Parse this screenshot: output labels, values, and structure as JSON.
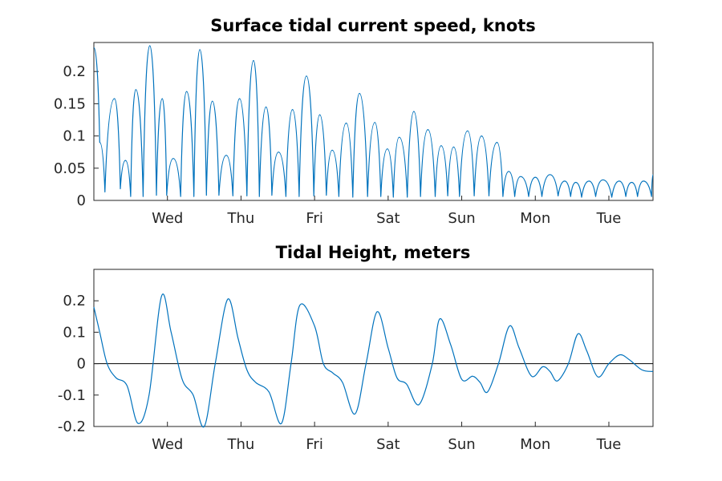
{
  "chart_data": [
    {
      "type": "line",
      "title": "Surface tidal current speed, knots",
      "xlabel": "",
      "ylabel": "",
      "x_range": [
        0,
        7.6
      ],
      "xticks": [
        {
          "label": "Wed",
          "x": 1
        },
        {
          "label": "Thu",
          "x": 2
        },
        {
          "label": "Fri",
          "x": 3
        },
        {
          "label": "Sat",
          "x": 4
        },
        {
          "label": "Sun",
          "x": 5
        },
        {
          "label": "Mon",
          "x": 6
        },
        {
          "label": "Tue",
          "x": 7
        }
      ],
      "yticks": [
        {
          "label": "0",
          "v": 0
        },
        {
          "label": "0.05",
          "v": 0.05
        },
        {
          "label": "0.1",
          "v": 0.1
        },
        {
          "label": "0.15",
          "v": 0.15
        },
        {
          "label": "0.2",
          "v": 0.2
        }
      ],
      "ylim": [
        0,
        0.245
      ],
      "grid": false,
      "color": "#0072BD",
      "series": [
        {
          "x": [
            0,
            0.08,
            0.15,
            0.28,
            0.36,
            0.43,
            0.5,
            0.57,
            0.67,
            0.76,
            0.85,
            0.93,
            0.99,
            1.08,
            1.18,
            1.26,
            1.36,
            1.44,
            1.53,
            1.61,
            1.7,
            1.8,
            1.89,
            1.98,
            2.08,
            2.17,
            2.25,
            2.34,
            2.42,
            2.51,
            2.61,
            2.7,
            2.79,
            2.89,
            2.99,
            3.07,
            3.16,
            3.24,
            3.33,
            3.43,
            3.52,
            3.61,
            3.72,
            3.82,
            3.9,
            3.99,
            4.07,
            4.15,
            4.26,
            4.35,
            4.44,
            4.54,
            4.64,
            4.72,
            4.81,
            4.89,
            4.97,
            5.08,
            5.17,
            5.27,
            5.37,
            5.48,
            5.56,
            5.64,
            5.72,
            5.8,
            5.91,
            6.0,
            6.09,
            6.2,
            6.31,
            6.4,
            6.48,
            6.55,
            6.63,
            6.73,
            6.82,
            6.92,
            7.04,
            7.14,
            7.23,
            7.31,
            7.39,
            7.47,
            7.58,
            7.6
          ],
          "y": [
            0.237,
            0.09,
            0.013,
            0.158,
            0.018,
            0.062,
            0.006,
            0.172,
            0.006,
            0.24,
            0.008,
            0.158,
            0.008,
            0.065,
            0.006,
            0.169,
            0.006,
            0.234,
            0.008,
            0.154,
            0.008,
            0.07,
            0.007,
            0.158,
            0.007,
            0.217,
            0.006,
            0.145,
            0.008,
            0.075,
            0.006,
            0.141,
            0.006,
            0.193,
            0.007,
            0.133,
            0.008,
            0.078,
            0.006,
            0.12,
            0.005,
            0.166,
            0.006,
            0.121,
            0.006,
            0.08,
            0.005,
            0.098,
            0.005,
            0.138,
            0.006,
            0.11,
            0.006,
            0.085,
            0.007,
            0.083,
            0.006,
            0.108,
            0.007,
            0.1,
            0.007,
            0.09,
            0.006,
            0.045,
            0.006,
            0.037,
            0.006,
            0.036,
            0.006,
            0.04,
            0.007,
            0.03,
            0.006,
            0.028,
            0.005,
            0.03,
            0.006,
            0.032,
            0.005,
            0.03,
            0.006,
            0.028,
            0.006,
            0.03,
            0.006,
            0.04
          ]
        }
      ]
    },
    {
      "type": "line",
      "title": "Tidal Height, meters",
      "xlabel": "",
      "ylabel": "",
      "x_range": [
        0,
        7.6
      ],
      "xticks": [
        {
          "label": "Wed",
          "x": 1
        },
        {
          "label": "Thu",
          "x": 2
        },
        {
          "label": "Fri",
          "x": 3
        },
        {
          "label": "Sat",
          "x": 4
        },
        {
          "label": "Sun",
          "x": 5
        },
        {
          "label": "Mon",
          "x": 6
        },
        {
          "label": "Tue",
          "x": 7
        }
      ],
      "yticks": [
        {
          "label": "-0.2",
          "v": -0.2
        },
        {
          "label": "-0.1",
          "v": -0.1
        },
        {
          "label": "0",
          "v": 0
        },
        {
          "label": "0.1",
          "v": 0.1
        },
        {
          "label": "0.2",
          "v": 0.2
        }
      ],
      "ylim": [
        -0.2,
        0.3
      ],
      "grid": false,
      "zero_line": true,
      "color": "#0072BD",
      "series": [
        {
          "x": [
            0,
            0.08,
            0.18,
            0.3,
            0.45,
            0.6,
            0.75,
            0.92,
            1.05,
            1.2,
            1.35,
            1.5,
            1.65,
            1.82,
            1.96,
            2.08,
            2.2,
            2.38,
            2.55,
            2.68,
            2.8,
            3.0,
            3.12,
            3.25,
            3.38,
            3.55,
            3.7,
            3.85,
            4.0,
            4.12,
            4.25,
            4.42,
            4.6,
            4.7,
            4.85,
            5.0,
            5.15,
            5.25,
            5.35,
            5.5,
            5.65,
            5.78,
            5.95,
            6.1,
            6.2,
            6.3,
            6.45,
            6.58,
            6.7,
            6.85,
            7.0,
            7.15,
            7.28,
            7.45,
            7.6
          ],
          "y": [
            0.18,
            0.1,
            0.0,
            -0.045,
            -0.07,
            -0.19,
            -0.1,
            0.215,
            0.1,
            -0.05,
            -0.1,
            -0.2,
            0.0,
            0.205,
            0.08,
            -0.02,
            -0.06,
            -0.09,
            -0.19,
            0.0,
            0.186,
            0.12,
            0.0,
            -0.03,
            -0.06,
            -0.16,
            0.0,
            0.165,
            0.05,
            -0.045,
            -0.065,
            -0.13,
            0.0,
            0.142,
            0.06,
            -0.05,
            -0.04,
            -0.06,
            -0.09,
            0.0,
            0.12,
            0.05,
            -0.04,
            -0.01,
            -0.025,
            -0.055,
            0.0,
            0.095,
            0.04,
            -0.042,
            0.0,
            0.028,
            0.012,
            -0.02,
            -0.025
          ]
        }
      ]
    }
  ]
}
